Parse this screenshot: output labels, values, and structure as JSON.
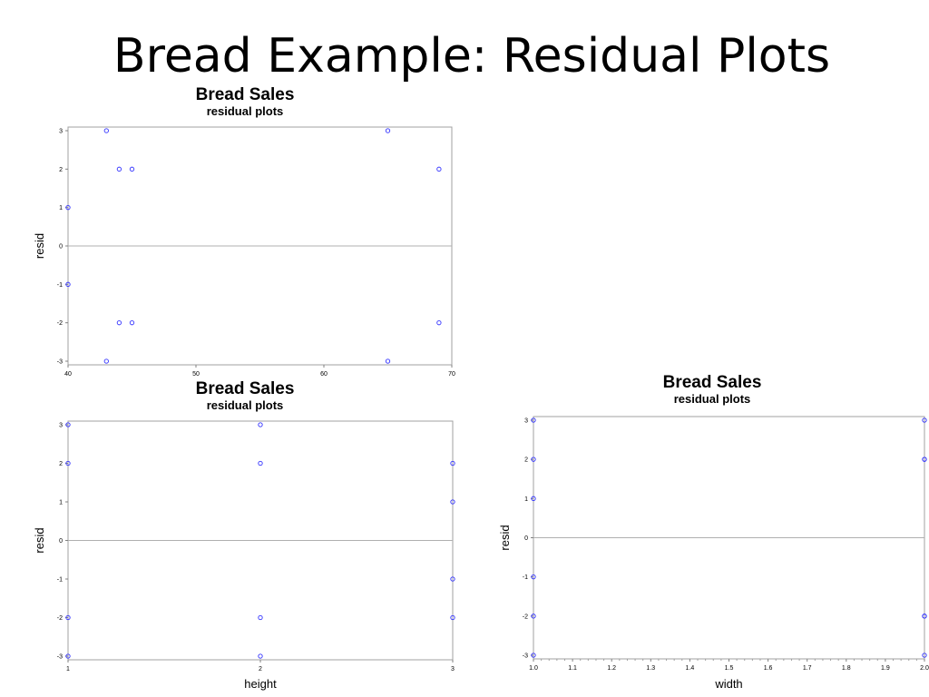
{
  "slide": {
    "title": "Bread Example: Residual Plots"
  },
  "chart_data": [
    {
      "type": "scatter",
      "title": "Bread Sales",
      "subtitle": "residual plots",
      "xlabel": "",
      "ylabel": "resid",
      "xlim": [
        40,
        70
      ],
      "ylim": [
        -3,
        3
      ],
      "xticks": [
        40,
        50,
        60,
        70
      ],
      "yticks": [
        3,
        2,
        1,
        0,
        -1,
        -2,
        -3
      ],
      "reference_line_y": 0,
      "marker_color": "#3333ff",
      "points": [
        {
          "x": 40,
          "y": 1
        },
        {
          "x": 40,
          "y": -1
        },
        {
          "x": 43,
          "y": 3
        },
        {
          "x": 43,
          "y": -3
        },
        {
          "x": 44,
          "y": 2
        },
        {
          "x": 44,
          "y": -2
        },
        {
          "x": 45,
          "y": 2
        },
        {
          "x": 45,
          "y": -2
        },
        {
          "x": 65,
          "y": 3
        },
        {
          "x": 65,
          "y": -3
        },
        {
          "x": 69,
          "y": 2
        },
        {
          "x": 69,
          "y": -2
        }
      ]
    },
    {
      "type": "scatter",
      "title": "Bread Sales",
      "subtitle": "residual plots",
      "xlabel": "height",
      "ylabel": "resid",
      "xlim": [
        1,
        3
      ],
      "ylim": [
        -3,
        3
      ],
      "xticks": [
        1,
        2,
        3
      ],
      "yticks": [
        3,
        2,
        1,
        0,
        -1,
        -2,
        -3
      ],
      "reference_line_y": 0,
      "marker_color": "#3333ff",
      "points": [
        {
          "x": 1,
          "y": 3
        },
        {
          "x": 1,
          "y": 2
        },
        {
          "x": 1,
          "y": -2
        },
        {
          "x": 1,
          "y": -3
        },
        {
          "x": 2,
          "y": 3
        },
        {
          "x": 2,
          "y": 2
        },
        {
          "x": 2,
          "y": -2
        },
        {
          "x": 2,
          "y": -3
        },
        {
          "x": 3,
          "y": 2
        },
        {
          "x": 3,
          "y": 1
        },
        {
          "x": 3,
          "y": -1
        },
        {
          "x": 3,
          "y": -2
        }
      ]
    },
    {
      "type": "scatter",
      "title": "Bread Sales",
      "subtitle": "residual plots",
      "xlabel": "width",
      "ylabel": "resid",
      "xlim": [
        1.0,
        2.0
      ],
      "ylim": [
        -3,
        3
      ],
      "xticks": [
        "1.0",
        "1.1",
        "1.2",
        "1.3",
        "1.4",
        "1.5",
        "1.6",
        "1.7",
        "1.8",
        "1.9",
        "2.0"
      ],
      "yticks": [
        3,
        2,
        1,
        0,
        -1,
        -2,
        -3
      ],
      "reference_line_y": 0,
      "marker_color": "#3333ff",
      "points": [
        {
          "x": 1.0,
          "y": 3
        },
        {
          "x": 1.0,
          "y": 2
        },
        {
          "x": 1.0,
          "y": 1
        },
        {
          "x": 1.0,
          "y": -1
        },
        {
          "x": 1.0,
          "y": -2
        },
        {
          "x": 1.0,
          "y": -3
        },
        {
          "x": 2.0,
          "y": 3
        },
        {
          "x": 2.0,
          "y": 2
        },
        {
          "x": 2.0,
          "y": 2
        },
        {
          "x": 2.0,
          "y": -2
        },
        {
          "x": 2.0,
          "y": -2
        },
        {
          "x": 2.0,
          "y": -3
        }
      ]
    }
  ]
}
